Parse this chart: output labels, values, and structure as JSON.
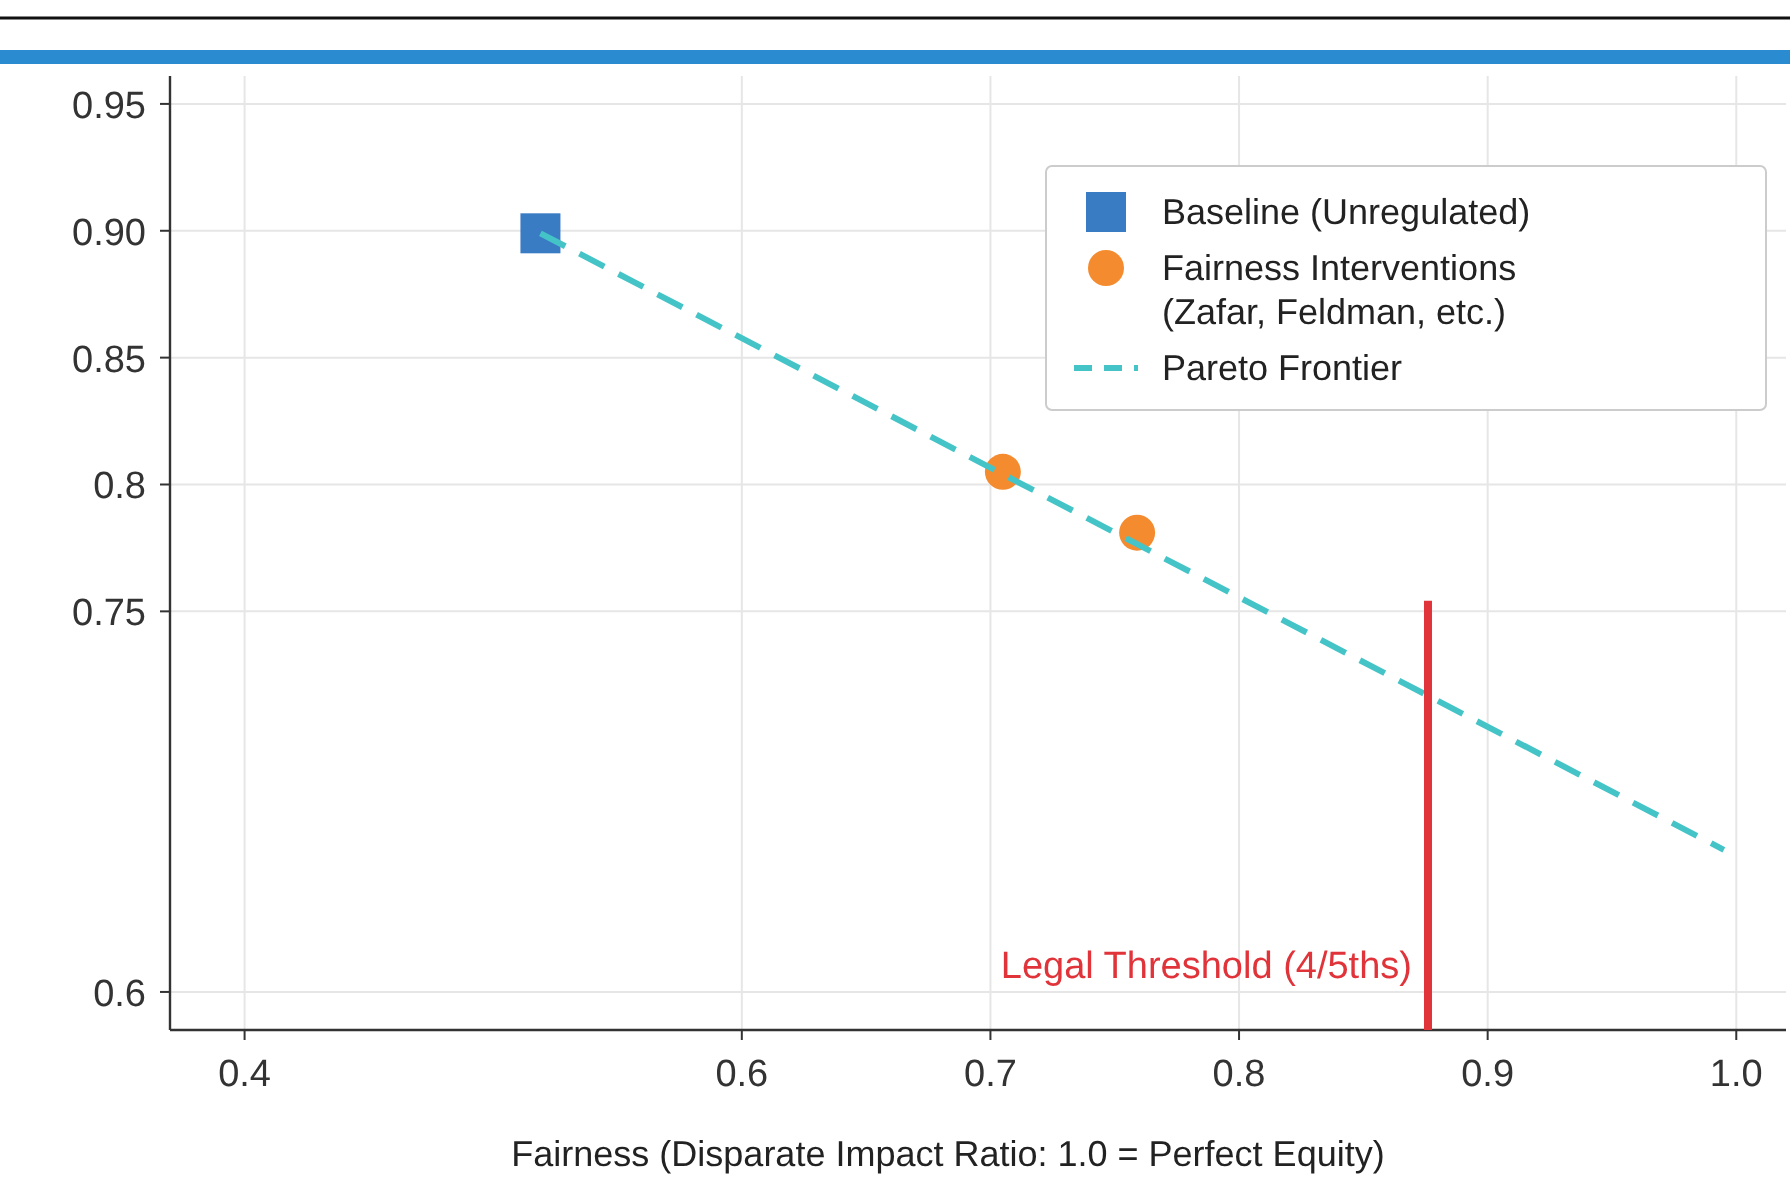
{
  "chart_data": {
    "type": "scatter",
    "xlabel": "Fairness (Disparate Impact Ratio: 1.0 = Perfect Equity)",
    "xlim": [
      0.37,
      1.02
    ],
    "ylim": [
      0.585,
      0.961
    ],
    "xticks": [
      0.4,
      0.6,
      0.7,
      0.8,
      0.9,
      {
        "value": 1.0,
        "label": "1.0"
      }
    ],
    "yticks": [
      0.6,
      0.75,
      0.8,
      0.85,
      {
        "value": 0.9,
        "label": "0.90"
      },
      0.95
    ],
    "grid": true,
    "legend": "top right",
    "series": [
      {
        "name": "Baseline (Unregulated)",
        "marker": "square",
        "color": "#3a7cc4",
        "x": [
          0.519
        ],
        "values": [
          0.899
        ]
      },
      {
        "name": "Fairness Interventions (Zafar, Feldman, etc.)",
        "marker": "circle",
        "color": "#f58b2f",
        "x": [
          0.705,
          0.759
        ],
        "values": [
          0.805,
          0.781
        ]
      },
      {
        "name": "Pareto Frontier",
        "type": "line",
        "line_style": "dashed",
        "marker": "none",
        "color": "#45c4c8",
        "x": [
          0.519,
          0.995
        ],
        "values": [
          0.899,
          0.656
        ]
      }
    ],
    "ref_lines": [
      {
        "axis": "x",
        "value": 0.876,
        "label": "Legal Threshold (4/5ths)",
        "color": "#e0343a"
      }
    ]
  }
}
